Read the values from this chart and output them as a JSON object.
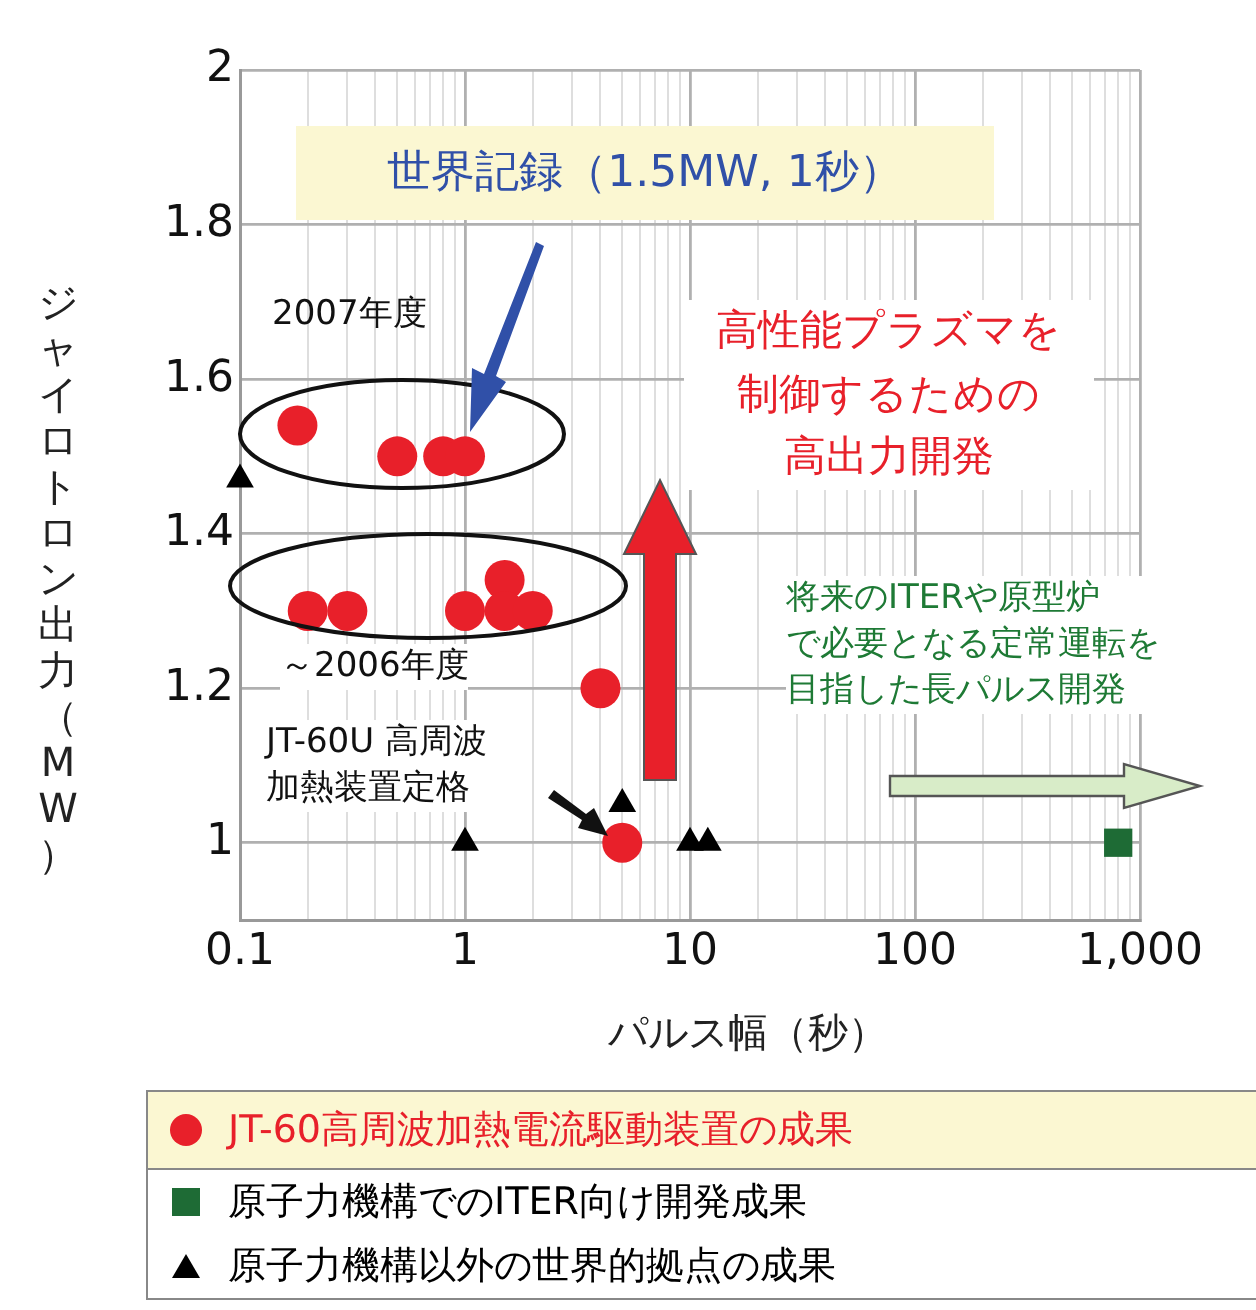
{
  "chart_data": {
    "type": "scatter",
    "xlabel": "パルス幅（秒）",
    "ylabel": "ジャイロトロン出力（MW）",
    "log": "x",
    "xlim": [
      0.1,
      1000
    ],
    "ylim": [
      0.9,
      2
    ],
    "xticks": [
      0.1,
      {
        "value": 0.2,
        "label": null
      },
      {
        "value": 0.3,
        "label": null
      },
      {
        "value": 0.4,
        "label": null
      },
      {
        "value": 0.5,
        "label": null
      },
      {
        "value": 0.6,
        "label": null
      },
      {
        "value": 0.7,
        "label": null
      },
      {
        "value": 0.8,
        "label": null
      },
      {
        "value": 0.9,
        "label": null
      },
      1,
      {
        "value": 2,
        "label": null
      },
      {
        "value": 3,
        "label": null
      },
      {
        "value": 4,
        "label": null
      },
      {
        "value": 5,
        "label": null
      },
      {
        "value": 6,
        "label": null
      },
      {
        "value": 7,
        "label": null
      },
      {
        "value": 8,
        "label": null
      },
      {
        "value": 9,
        "label": null
      },
      10,
      {
        "value": 20,
        "label": null
      },
      {
        "value": 30,
        "label": null
      },
      {
        "value": 40,
        "label": null
      },
      {
        "value": 50,
        "label": null
      },
      {
        "value": 60,
        "label": null
      },
      {
        "value": 70,
        "label": null
      },
      {
        "value": 80,
        "label": null
      },
      {
        "value": 90,
        "label": null
      },
      100,
      {
        "value": 200,
        "label": null
      },
      {
        "value": 300,
        "label": null
      },
      {
        "value": 400,
        "label": null
      },
      {
        "value": 500,
        "label": null
      },
      {
        "value": 600,
        "label": null
      },
      {
        "value": 700,
        "label": null
      },
      {
        "value": 800,
        "label": null
      },
      {
        "value": 900,
        "label": null
      },
      {
        "value": 1000,
        "label": "1,000"
      }
    ],
    "yticks": [
      1,
      1.2,
      1.4,
      1.6,
      1.8,
      2
    ],
    "grid": true,
    "legend": "bottom",
    "series": [
      {
        "name": "JT-60高周波加熱電流駆動装置の成果",
        "color": "#e8202a",
        "marker": "circle",
        "x": [
          0.18,
          0.5,
          0.8,
          1,
          0.2,
          0.3,
          1,
          1.5,
          1.5,
          2,
          4,
          5
        ],
        "values": [
          1.54,
          1.5,
          1.5,
          1.5,
          1.3,
          1.3,
          1.3,
          1.34,
          1.3,
          1.3,
          1.2,
          1
        ]
      },
      {
        "name": "原子力機構でのITER向け開発成果",
        "color": "#1e6b35",
        "marker": "square",
        "x": [
          800
        ],
        "values": [
          1
        ]
      },
      {
        "name": "原子力機構以外の世界的拠点の成果",
        "color": "#000000",
        "marker": "triangle",
        "x": [
          0.1,
          1,
          5,
          10,
          12
        ],
        "values": [
          1.47,
          1,
          1.05,
          1,
          1
        ]
      }
    ],
    "annotations": [
      "世界記録（1.5MW, 1秒）",
      "2007年度",
      "～2006年度",
      "高性能プラズマを制御するための高出力開発",
      "将来のITERや原型炉で必要となる定常運転を目指した長パルス開発",
      "JT-60U 高周波加熱装置定格"
    ]
  }
}
